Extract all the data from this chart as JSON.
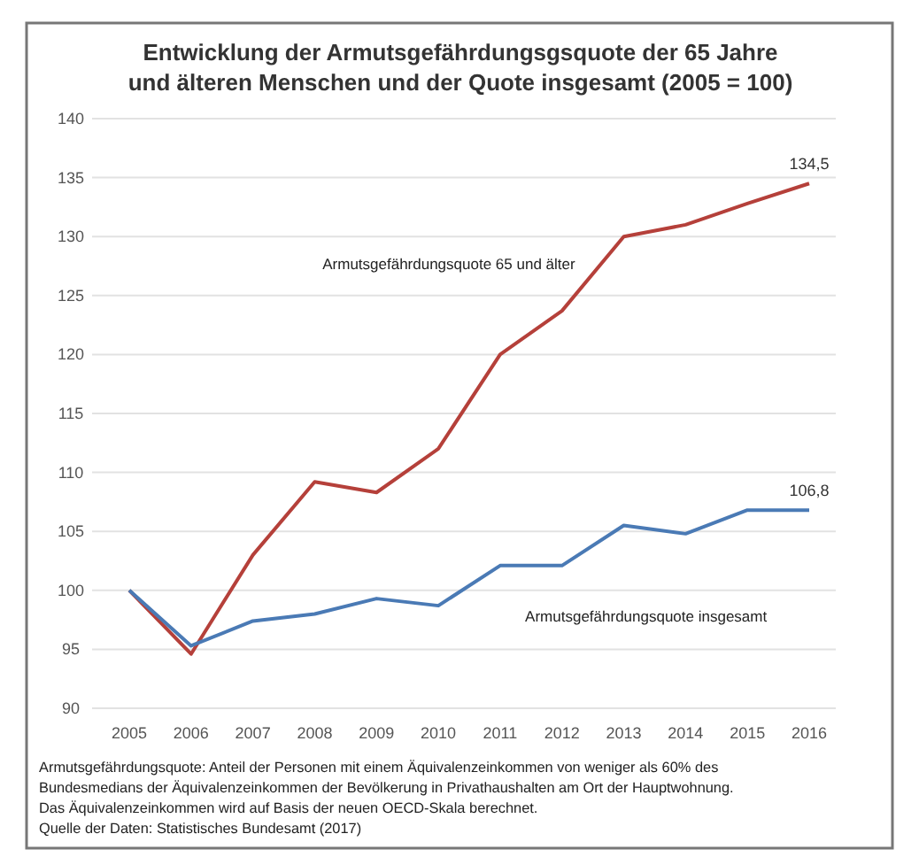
{
  "chart_data": {
    "type": "line",
    "title": "Entwicklung der Armutsgefährdungsgsquote der 65 Jahre\nund älteren Menschen und der Quote insgesamt (2005 = 100)",
    "categories": [
      "2005",
      "2006",
      "2007",
      "2008",
      "2009",
      "2010",
      "2011",
      "2012",
      "2013",
      "2014",
      "2015",
      "2016"
    ],
    "series": [
      {
        "name": "Armutsgefährdungsquote 65 und älter",
        "color": "#b5403a",
        "values": [
          100,
          94.6,
          103,
          109.2,
          108.3,
          112,
          120,
          123.7,
          130,
          131,
          132.8,
          134.5
        ],
        "value_labels": [
          null,
          null,
          null,
          null,
          null,
          null,
          null,
          null,
          null,
          null,
          null,
          "134,5"
        ]
      },
      {
        "name": "Armutsgefährdungsquote insgesamt",
        "color": "#4a7ab5",
        "values": [
          100,
          95.3,
          97.4,
          98,
          99.3,
          98.7,
          102.1,
          102.1,
          105.5,
          104.8,
          106.8,
          106.8
        ],
        "value_labels": [
          null,
          null,
          null,
          null,
          null,
          null,
          null,
          null,
          null,
          null,
          null,
          "106,8"
        ]
      }
    ],
    "ylim": [
      90,
      140
    ],
    "yticks": [
      90,
      95,
      100,
      105,
      110,
      115,
      120,
      125,
      130,
      135,
      140
    ],
    "grid": "y",
    "marker": "none",
    "line_style": "solid",
    "annotations": [
      "Armutsgefährdungsquote: Anteil der Personen mit einem Äquivalenzeinkommen von weniger als 60% des",
      "Bundesmedians der Äquivalenzeinkommen der Bevölkerung in Privathaushalten am Ort der Hauptwohnung.",
      "Das Äquivalenzeinkommen wird auf Basis der neuen OECD-Skala berechnet.",
      "Quelle der Daten: Statistisches Bundesamt (2017)"
    ]
  }
}
